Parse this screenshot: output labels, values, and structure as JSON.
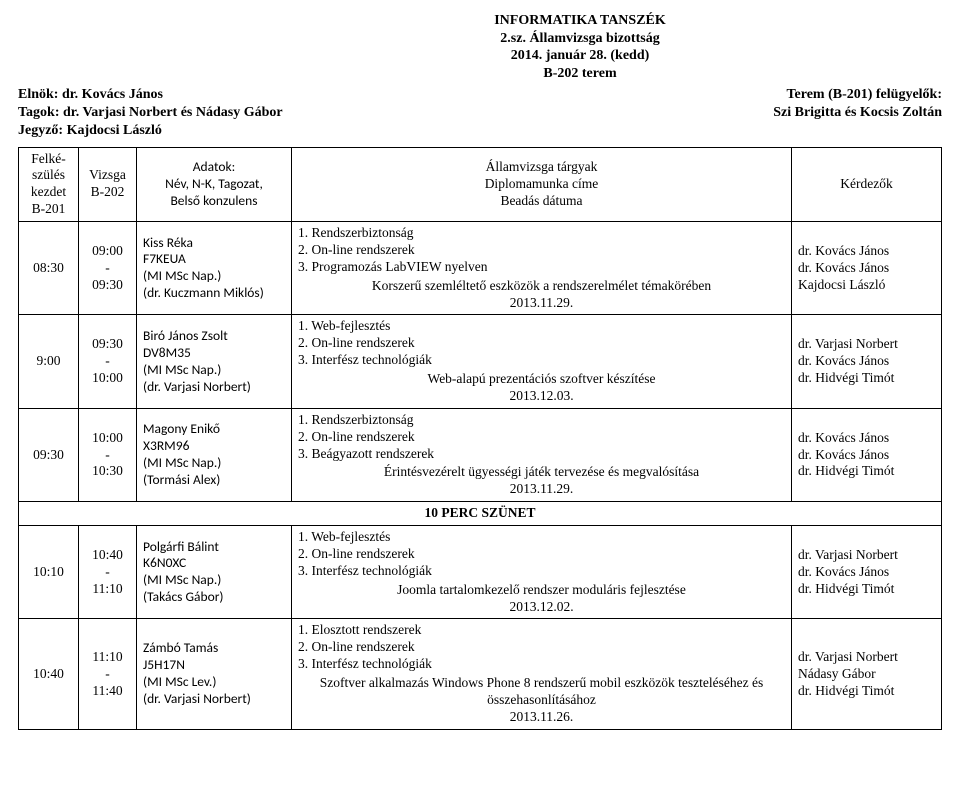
{
  "header": {
    "line1": "INFORMATIKA TANSZÉK",
    "line2": "2.sz. Államvizsga bizottság",
    "line3": "2014. január 28. (kedd)",
    "line4": "B-202 terem"
  },
  "topLeft": {
    "l1": "Elnök: dr. Kovács János",
    "l2": "Tagok: dr. Varjasi Norbert és Nádasy Gábor",
    "l3": "Jegyző: Kajdocsi László"
  },
  "topRight": {
    "l1": "Terem (B-201) felügyelők:",
    "l2": "Szi Brigitta és Kocsis Zoltán"
  },
  "columns": {
    "prep": "Felké-\nszülés\nkezdet\nB-201",
    "exam": "Vizsga\nB-202",
    "data": "Adatok:\nNév, N-K, Tagozat,\nBelső konzulens",
    "subj": "Államvizsga tárgyak\nDiplomamunka címe\nBeadás dátuma",
    "ask": "Kérdezők"
  },
  "breakLabel": "10 PERC SZÜNET",
  "rows": [
    {
      "prep": "08:30",
      "exam": "09:00\n-\n09:30",
      "name": "Kiss Réka",
      "code": "F7KEUA",
      "prog": "(MI MSc Nap.)",
      "cons": "(dr. Kuczmann Miklós)",
      "s1": "1. Rendszerbiztonság",
      "s2": "2. On-line rendszerek",
      "s3": "3. Programozás LabVIEW nyelven",
      "thesis": "Korszerű szemléltető eszközök a rendszerelmélet témakörében",
      "date": "2013.11.29.",
      "a1": "dr. Kovács János",
      "a2": "dr. Kovács János",
      "a3": "Kajdocsi László"
    },
    {
      "prep": "9:00",
      "exam": "09:30\n-\n10:00",
      "name": "Biró János Zsolt",
      "code": "DV8M35",
      "prog": "(MI MSc Nap.)",
      "cons": "(dr. Varjasi Norbert)",
      "s1": "1. Web-fejlesztés",
      "s2": "2. On-line rendszerek",
      "s3": "3. Interfész technológiák",
      "thesis": "Web-alapú prezentációs szoftver készítése",
      "date": "2013.12.03.",
      "a1": "dr. Varjasi Norbert",
      "a2": "dr. Kovács János",
      "a3": "dr. Hidvégi Timót"
    },
    {
      "prep": "09:30",
      "exam": "10:00\n-\n10:30",
      "name": "Magony Enikő",
      "code": "X3RM96",
      "prog": "(MI MSc Nap.)",
      "cons": "(Tormási Alex)",
      "s1": "1. Rendszerbiztonság",
      "s2": "2. On-line rendszerek",
      "s3": "3. Beágyazott rendszerek",
      "thesis": "Érintésvezérelt ügyességi játék tervezése és megvalósítása",
      "date": "2013.11.29.",
      "a1": "dr. Kovács János",
      "a2": "dr. Kovács János",
      "a3": "dr. Hidvégi Timót"
    },
    {
      "prep": "10:10",
      "exam": "10:40\n-\n11:10",
      "name": "Polgárfi Bálint",
      "code": "K6N0XC",
      "prog": "(MI MSc Nap.)",
      "cons": "(Takács Gábor)",
      "s1": "1. Web-fejlesztés",
      "s2": "2. On-line rendszerek",
      "s3": "3. Interfész technológiák",
      "thesis": "Joomla tartalomkezelő rendszer moduláris fejlesztése",
      "date": "2013.12.02.",
      "a1": "dr. Varjasi Norbert",
      "a2": "dr. Kovács János",
      "a3": "dr. Hidvégi Timót"
    },
    {
      "prep": "10:40",
      "exam": "11:10\n-\n11:40",
      "name": "Zámbó Tamás",
      "code": "J5H17N",
      "prog": "(MI MSc Lev.)",
      "cons": "(dr. Varjasi Norbert)",
      "s1": "1. Elosztott rendszerek",
      "s2": "2. On-line rendszerek",
      "s3": "3. Interfész technológiák",
      "thesis": "Szoftver alkalmazás Windows Phone 8 rendszerű mobil eszközök teszteléséhez és összehasonlításához",
      "date": "2013.11.26.",
      "a1": "dr. Varjasi Norbert",
      "a2": "Nádasy Gábor",
      "a3": "dr. Hidvégi Timót"
    }
  ]
}
